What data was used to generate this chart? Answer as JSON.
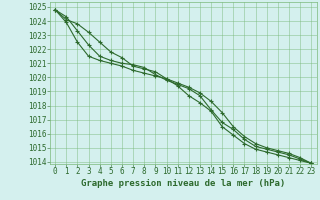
{
  "title": "Graphe pression niveau de la mer (hPa)",
  "x": [
    0,
    1,
    2,
    3,
    4,
    5,
    6,
    7,
    8,
    9,
    10,
    11,
    12,
    13,
    14,
    15,
    16,
    17,
    18,
    19,
    20,
    21,
    22,
    23
  ],
  "line1": [
    1024.8,
    1024.1,
    1023.8,
    1023.2,
    1022.5,
    1021.8,
    1021.4,
    1020.8,
    1020.6,
    1020.4,
    1019.9,
    1019.4,
    1018.7,
    1018.2,
    1017.6,
    1016.5,
    1015.9,
    1015.3,
    1014.9,
    1014.7,
    1014.5,
    1014.3,
    1014.1,
    1013.9
  ],
  "line2": [
    1024.8,
    1024.3,
    1023.3,
    1022.3,
    1021.5,
    1021.2,
    1021.0,
    1020.9,
    1020.7,
    1020.2,
    1019.8,
    1019.5,
    1019.2,
    1018.7,
    1017.7,
    1016.8,
    1016.3,
    1015.6,
    1015.1,
    1014.9,
    1014.7,
    1014.5,
    1014.2,
    1013.9
  ],
  "line3": [
    1024.8,
    1023.9,
    1022.5,
    1021.5,
    1021.2,
    1021.0,
    1020.8,
    1020.5,
    1020.3,
    1020.1,
    1019.9,
    1019.6,
    1019.3,
    1018.9,
    1018.3,
    1017.5,
    1016.5,
    1015.8,
    1015.3,
    1015.0,
    1014.8,
    1014.6,
    1014.3,
    1013.9
  ],
  "ylim": [
    1014,
    1025
  ],
  "xlim_min": -0.5,
  "xlim_max": 23.5,
  "line_color": "#2d6a2d",
  "bg_color": "#d4f0ee",
  "grid_color": "#7ab87a",
  "title_fontsize": 6.5,
  "tick_fontsize": 5.5,
  "marker": "+"
}
